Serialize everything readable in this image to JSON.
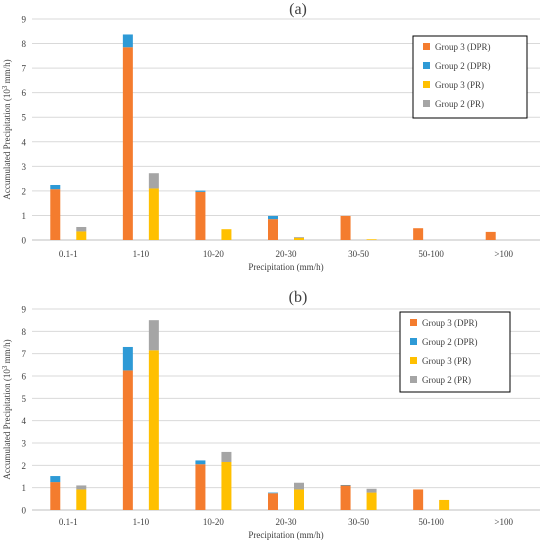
{
  "chart_data": [
    {
      "type": "bar",
      "stacked": true,
      "title": "(a)",
      "xlabel": "Precipitation (mm/h)",
      "ylabel": "Accumulated Precipitation (10³ mm/h)",
      "ylim": [
        0,
        9
      ],
      "yticks": [
        "0",
        "1",
        "2",
        "3",
        "4",
        "5",
        "6",
        "7",
        "8",
        "9"
      ],
      "categories": [
        "0.1-1",
        "1-10",
        "10-20",
        "20-30",
        "30-50",
        "50-100",
        ">100"
      ],
      "legend_position": "top-right",
      "grid": true,
      "stacks": [
        {
          "name": "DPR",
          "series": [
            {
              "name": "Group 3 (DPR)",
              "color": "#f47c2e",
              "values": [
                2.07,
                7.85,
                1.96,
                0.85,
                0.98,
                0.48,
                0.33
              ]
            },
            {
              "name": "Group 2 (DPR)",
              "color": "#2e9ad6",
              "values": [
                0.17,
                0.52,
                0.05,
                0.13,
                0.0,
                0.0,
                0.0
              ]
            }
          ]
        },
        {
          "name": "PR",
          "series": [
            {
              "name": "Group 3 (PR)",
              "color": "#ffc000",
              "values": [
                0.35,
                2.1,
                0.44,
                0.09,
                0.03,
                0.0,
                0.0
              ]
            },
            {
              "name": "Group 2 (PR)",
              "color": "#a5a5a5",
              "values": [
                0.18,
                0.62,
                0.0,
                0.03,
                0.0,
                0.0,
                0.0
              ]
            }
          ]
        }
      ]
    },
    {
      "type": "bar",
      "stacked": true,
      "title": "(b)",
      "xlabel": "Precipitation (mm/h)",
      "ylabel": "Accumulated Precipitation (10³ mm/h)",
      "ylim": [
        0,
        9
      ],
      "yticks": [
        "0",
        "1",
        "2",
        "3",
        "4",
        "5",
        "6",
        "7",
        "8",
        "9"
      ],
      "categories": [
        "0.1-1",
        "1-10",
        "10-20",
        "20-30",
        "30-50",
        "50-100",
        ">100"
      ],
      "legend_position": "top-right",
      "grid": true,
      "stacks": [
        {
          "name": "DPR",
          "series": [
            {
              "name": "Group 3 (DPR)",
              "color": "#f47c2e",
              "values": [
                1.25,
                6.25,
                2.05,
                0.75,
                1.1,
                0.92,
                0.0
              ]
            },
            {
              "name": "Group 2 (DPR)",
              "color": "#2e9ad6",
              "values": [
                0.27,
                1.05,
                0.17,
                0.03,
                0.02,
                0.0,
                0.0
              ]
            }
          ]
        },
        {
          "name": "PR",
          "series": [
            {
              "name": "Group 3 (PR)",
              "color": "#ffc000",
              "values": [
                0.92,
                7.15,
                2.15,
                0.92,
                0.78,
                0.45,
                0.0
              ]
            },
            {
              "name": "Group 2 (PR)",
              "color": "#a5a5a5",
              "values": [
                0.18,
                1.35,
                0.45,
                0.3,
                0.17,
                0.0,
                0.0
              ]
            }
          ]
        }
      ]
    }
  ]
}
